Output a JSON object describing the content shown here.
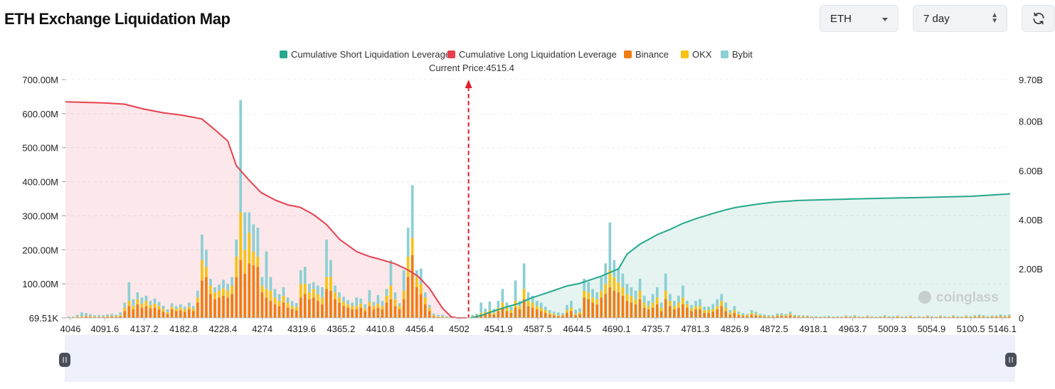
{
  "header": {
    "title": "ETH Exchange Liquidation Map",
    "coin_select": "ETH",
    "range_select": "7 day"
  },
  "colors": {
    "short": "#26a88c",
    "long": "#e8404f",
    "binance": "#f07c12",
    "okx": "#f7c214",
    "bybit": "#8ccfd4"
  },
  "watermark": "coinglass",
  "chart_data": {
    "type": "bar",
    "current_price_label": "Current Price:4515.4",
    "current_price": 4515.4,
    "legend": [
      {
        "name": "Cumulative Short Liquidation Leverage",
        "color": "#26a88c"
      },
      {
        "name": "Cumulative Long Liquidation Leverage",
        "color": "#e8404f"
      },
      {
        "name": "Binance",
        "color": "#f07c12"
      },
      {
        "name": "OKX",
        "color": "#f7c214"
      },
      {
        "name": "Bybit",
        "color": "#8ccfd4"
      }
    ],
    "x_ticks": [
      "4046",
      "4091.6",
      "4137.2",
      "4182.8",
      "4228.4",
      "4274",
      "4319.6",
      "4365.2",
      "4410.8",
      "4456.4",
      "4502",
      "4541.9",
      "4587.5",
      "4644.5",
      "4690.1",
      "4735.7",
      "4781.3",
      "4826.9",
      "4872.5",
      "4918.1",
      "4963.7",
      "5009.3",
      "5054.9",
      "5100.5",
      "5146.1"
    ],
    "y_left_ticks": [
      "69.51K",
      "100.00M",
      "200.00M",
      "300.00M",
      "400.00M",
      "500.00M",
      "600.00M",
      "700.00M"
    ],
    "y_right_ticks": [
      "0",
      "2.00B",
      "4.00B",
      "6.00B",
      "8.00B",
      "9.70B"
    ],
    "y_left_range": [
      0,
      700
    ],
    "y_right_range": [
      0,
      9.7
    ],
    "x_range": [
      4046,
      5146.1
    ],
    "long_cumulative_B": [
      [
        4046,
        8.8
      ],
      [
        4091.6,
        8.75
      ],
      [
        4115,
        8.7
      ],
      [
        4137.2,
        8.5
      ],
      [
        4160,
        8.35
      ],
      [
        4182.8,
        8.25
      ],
      [
        4205,
        8.1
      ],
      [
        4222,
        7.6
      ],
      [
        4235,
        7.2
      ],
      [
        4245,
        6.2
      ],
      [
        4260,
        5.6
      ],
      [
        4274,
        5.1
      ],
      [
        4290,
        4.8
      ],
      [
        4305,
        4.6
      ],
      [
        4319.6,
        4.5
      ],
      [
        4335,
        4.2
      ],
      [
        4350,
        3.8
      ],
      [
        4365.2,
        3.2
      ],
      [
        4385,
        2.7
      ],
      [
        4400,
        2.5
      ],
      [
        4410.8,
        2.4
      ],
      [
        4430,
        2.2
      ],
      [
        4445,
        1.95
      ],
      [
        4456.4,
        1.7
      ],
      [
        4470,
        1.2
      ],
      [
        4485,
        0.4
      ],
      [
        4495,
        0.05
      ],
      [
        4502,
        0.0
      ],
      [
        4513,
        0.0
      ]
    ],
    "short_cumulative_B": [
      [
        4518,
        0.0
      ],
      [
        4530,
        0.1
      ],
      [
        4541.9,
        0.25
      ],
      [
        4560,
        0.45
      ],
      [
        4575,
        0.6
      ],
      [
        4587.5,
        0.8
      ],
      [
        4605,
        1.0
      ],
      [
        4630,
        1.3
      ],
      [
        4644.5,
        1.4
      ],
      [
        4670,
        1.7
      ],
      [
        4690.1,
        2.0
      ],
      [
        4700,
        2.6
      ],
      [
        4715,
        3.0
      ],
      [
        4735.7,
        3.4
      ],
      [
        4750,
        3.6
      ],
      [
        4765,
        3.85
      ],
      [
        4781.3,
        4.05
      ],
      [
        4800,
        4.25
      ],
      [
        4815,
        4.4
      ],
      [
        4826.9,
        4.5
      ],
      [
        4850,
        4.62
      ],
      [
        4872.5,
        4.72
      ],
      [
        4900,
        4.78
      ],
      [
        4918.1,
        4.8
      ],
      [
        4963.7,
        4.84
      ],
      [
        5009.3,
        4.88
      ],
      [
        5054.9,
        4.91
      ],
      [
        5100.5,
        4.95
      ],
      [
        5146.1,
        5.05
      ]
    ],
    "bars_M": [
      [
        4050,
        1,
        1,
        2
      ],
      [
        4055,
        1,
        1,
        2
      ],
      [
        4060,
        2,
        2,
        5
      ],
      [
        4065,
        2,
        2,
        12
      ],
      [
        4070,
        4,
        2,
        8
      ],
      [
        4075,
        3,
        2,
        6
      ],
      [
        4080,
        2,
        2,
        4
      ],
      [
        4085,
        2,
        1,
        5
      ],
      [
        4090,
        2,
        2,
        4
      ],
      [
        4095,
        3,
        2,
        5
      ],
      [
        4100,
        4,
        2,
        6
      ],
      [
        4105,
        3,
        2,
        4
      ],
      [
        4110,
        5,
        3,
        8
      ],
      [
        4115,
        20,
        10,
        15
      ],
      [
        4120,
        35,
        15,
        55
      ],
      [
        4125,
        25,
        10,
        20
      ],
      [
        4130,
        40,
        15,
        20
      ],
      [
        4135,
        30,
        12,
        18
      ],
      [
        4140,
        35,
        15,
        15
      ],
      [
        4145,
        28,
        10,
        12
      ],
      [
        4150,
        30,
        12,
        15
      ],
      [
        4155,
        25,
        10,
        12
      ],
      [
        4160,
        18,
        8,
        10
      ],
      [
        4165,
        12,
        5,
        8
      ],
      [
        4170,
        25,
        8,
        10
      ],
      [
        4175,
        20,
        7,
        8
      ],
      [
        4180,
        22,
        8,
        10
      ],
      [
        4185,
        18,
        7,
        8
      ],
      [
        4190,
        25,
        8,
        12
      ],
      [
        4195,
        20,
        7,
        8
      ],
      [
        4200,
        45,
        15,
        20
      ],
      [
        4205,
        110,
        60,
        75
      ],
      [
        4210,
        120,
        30,
        50
      ],
      [
        4215,
        70,
        25,
        20
      ],
      [
        4220,
        55,
        20,
        15
      ],
      [
        4225,
        60,
        20,
        18
      ],
      [
        4230,
        65,
        22,
        25
      ],
      [
        4235,
        60,
        20,
        20
      ],
      [
        4240,
        70,
        25,
        25
      ],
      [
        4245,
        120,
        60,
        50
      ],
      [
        4250,
        170,
        140,
        330
      ],
      [
        4255,
        130,
        70,
        110
      ],
      [
        4260,
        160,
        90,
        60
      ],
      [
        4265,
        155,
        40,
        80
      ],
      [
        4270,
        150,
        30,
        85
      ],
      [
        4275,
        75,
        20,
        25
      ],
      [
        4280,
        60,
        25,
        110
      ],
      [
        4285,
        50,
        30,
        40
      ],
      [
        4290,
        40,
        20,
        25
      ],
      [
        4295,
        35,
        15,
        20
      ],
      [
        4300,
        45,
        20,
        25
      ],
      [
        4305,
        30,
        15,
        15
      ],
      [
        4310,
        25,
        10,
        15
      ],
      [
        4315,
        22,
        10,
        12
      ],
      [
        4320,
        60,
        40,
        40
      ],
      [
        4325,
        70,
        30,
        50
      ],
      [
        4330,
        55,
        20,
        25
      ],
      [
        4335,
        60,
        25,
        20
      ],
      [
        4340,
        50,
        20,
        25
      ],
      [
        4345,
        40,
        20,
        30
      ],
      [
        4350,
        85,
        35,
        110
      ],
      [
        4355,
        80,
        40,
        50
      ],
      [
        4360,
        55,
        20,
        20
      ],
      [
        4365,
        45,
        15,
        15
      ],
      [
        4370,
        35,
        12,
        15
      ],
      [
        4375,
        30,
        10,
        12
      ],
      [
        4380,
        25,
        10,
        10
      ],
      [
        4385,
        25,
        10,
        25
      ],
      [
        4390,
        30,
        12,
        15
      ],
      [
        4395,
        20,
        8,
        12
      ],
      [
        4400,
        35,
        12,
        35
      ],
      [
        4405,
        25,
        10,
        12
      ],
      [
        4410,
        30,
        12,
        25
      ],
      [
        4415,
        25,
        10,
        15
      ],
      [
        4420,
        45,
        20,
        20
      ],
      [
        4425,
        55,
        40,
        75
      ],
      [
        4430,
        35,
        20,
        20
      ],
      [
        4435,
        25,
        10,
        8
      ],
      [
        4440,
        55,
        25,
        60
      ],
      [
        4445,
        120,
        60,
        85
      ],
      [
        4450,
        185,
        50,
        155
      ],
      [
        4455,
        90,
        30,
        20
      ],
      [
        4460,
        70,
        30,
        45
      ],
      [
        4465,
        40,
        20,
        15
      ],
      [
        4470,
        20,
        10,
        8
      ],
      [
        4475,
        5,
        3,
        5
      ],
      [
        4480,
        2,
        2,
        5
      ],
      [
        4485,
        2,
        2,
        5
      ],
      [
        4490,
        1,
        1,
        3
      ],
      [
        4495,
        1,
        1,
        1
      ],
      [
        4500,
        1,
        1,
        1
      ],
      [
        4520,
        3,
        2,
        4
      ],
      [
        4525,
        5,
        3,
        5
      ],
      [
        4530,
        10,
        5,
        30
      ],
      [
        4535,
        12,
        5,
        10
      ],
      [
        4540,
        15,
        8,
        25
      ],
      [
        4545,
        10,
        5,
        12
      ],
      [
        4550,
        20,
        10,
        20
      ],
      [
        4555,
        30,
        15,
        40
      ],
      [
        4560,
        20,
        10,
        15
      ],
      [
        4565,
        15,
        8,
        10
      ],
      [
        4570,
        30,
        20,
        60
      ],
      [
        4575,
        25,
        10,
        15
      ],
      [
        4580,
        55,
        30,
        75
      ],
      [
        4585,
        35,
        15,
        25
      ],
      [
        4590,
        30,
        15,
        20
      ],
      [
        4595,
        25,
        10,
        15
      ],
      [
        4600,
        20,
        10,
        15
      ],
      [
        4605,
        15,
        8,
        10
      ],
      [
        4610,
        10,
        5,
        8
      ],
      [
        4615,
        8,
        4,
        6
      ],
      [
        4620,
        5,
        3,
        8
      ],
      [
        4625,
        6,
        3,
        5
      ],
      [
        4630,
        15,
        8,
        15
      ],
      [
        4635,
        20,
        10,
        20
      ],
      [
        4640,
        8,
        4,
        12
      ],
      [
        4645,
        12,
        6,
        10
      ],
      [
        4650,
        60,
        20,
        35
      ],
      [
        4655,
        55,
        20,
        30
      ],
      [
        4660,
        45,
        15,
        25
      ],
      [
        4665,
        40,
        15,
        20
      ],
      [
        4670,
        60,
        20,
        40
      ],
      [
        4675,
        70,
        30,
        60
      ],
      [
        4680,
        90,
        50,
        140
      ],
      [
        4685,
        80,
        40,
        50
      ],
      [
        4690,
        75,
        30,
        40
      ],
      [
        4695,
        65,
        25,
        40
      ],
      [
        4700,
        50,
        20,
        30
      ],
      [
        4705,
        45,
        20,
        25
      ],
      [
        4710,
        40,
        15,
        25
      ],
      [
        4715,
        55,
        25,
        35
      ],
      [
        4720,
        30,
        15,
        20
      ],
      [
        4725,
        25,
        10,
        15
      ],
      [
        4730,
        30,
        15,
        25
      ],
      [
        4735,
        40,
        20,
        30
      ],
      [
        4740,
        20,
        10,
        15
      ],
      [
        4745,
        55,
        25,
        50
      ],
      [
        4750,
        35,
        15,
        20
      ],
      [
        4755,
        25,
        10,
        15
      ],
      [
        4760,
        30,
        15,
        20
      ],
      [
        4765,
        40,
        20,
        35
      ],
      [
        4770,
        30,
        10,
        10
      ],
      [
        4775,
        20,
        8,
        10
      ],
      [
        4780,
        25,
        10,
        15
      ],
      [
        4785,
        25,
        10,
        20
      ],
      [
        4790,
        15,
        8,
        10
      ],
      [
        4795,
        15,
        8,
        10
      ],
      [
        4800,
        18,
        8,
        15
      ],
      [
        4805,
        25,
        10,
        20
      ],
      [
        4810,
        35,
        15,
        20
      ],
      [
        4815,
        20,
        10,
        15
      ],
      [
        4820,
        10,
        5,
        8
      ],
      [
        4825,
        15,
        8,
        12
      ],
      [
        4830,
        8,
        4,
        6
      ],
      [
        4835,
        6,
        3,
        5
      ],
      [
        4840,
        5,
        3,
        4
      ],
      [
        4845,
        10,
        5,
        8
      ],
      [
        4850,
        8,
        4,
        6
      ],
      [
        4855,
        5,
        3,
        4
      ],
      [
        4860,
        4,
        2,
        4
      ],
      [
        4865,
        3,
        2,
        3
      ],
      [
        4870,
        3,
        2,
        3
      ],
      [
        4875,
        5,
        3,
        5
      ],
      [
        4880,
        6,
        3,
        5
      ],
      [
        4885,
        5,
        3,
        4
      ],
      [
        4890,
        8,
        4,
        6
      ],
      [
        4895,
        4,
        2,
        3
      ],
      [
        4900,
        3,
        2,
        3
      ],
      [
        4905,
        3,
        2,
        2
      ],
      [
        4910,
        3,
        2,
        2
      ],
      [
        4915,
        2,
        1,
        2
      ],
      [
        4920,
        2,
        1,
        2
      ],
      [
        4925,
        2,
        1,
        1
      ],
      [
        4930,
        2,
        1,
        2
      ],
      [
        4935,
        3,
        1,
        2
      ],
      [
        4940,
        2,
        1,
        1
      ],
      [
        4945,
        2,
        1,
        2
      ],
      [
        4950,
        2,
        1,
        1
      ],
      [
        4955,
        3,
        2,
        2
      ],
      [
        4960,
        2,
        1,
        2
      ],
      [
        4965,
        3,
        2,
        3
      ],
      [
        4970,
        2,
        1,
        2
      ],
      [
        4975,
        2,
        1,
        1
      ],
      [
        4980,
        3,
        2,
        2
      ],
      [
        4985,
        2,
        1,
        2
      ],
      [
        4990,
        2,
        1,
        1
      ],
      [
        4995,
        2,
        1,
        2
      ],
      [
        5000,
        3,
        2,
        3
      ],
      [
        5005,
        2,
        1,
        2
      ],
      [
        5010,
        2,
        1,
        2
      ],
      [
        5015,
        3,
        2,
        2
      ],
      [
        5020,
        2,
        1,
        1
      ],
      [
        5025,
        2,
        1,
        2
      ],
      [
        5030,
        3,
        2,
        2
      ],
      [
        5035,
        2,
        1,
        1
      ],
      [
        5040,
        2,
        1,
        2
      ],
      [
        5045,
        2,
        1,
        1
      ],
      [
        5050,
        3,
        2,
        2
      ],
      [
        5055,
        2,
        1,
        2
      ],
      [
        5060,
        2,
        1,
        1
      ],
      [
        5065,
        3,
        2,
        2
      ],
      [
        5070,
        2,
        1,
        2
      ],
      [
        5075,
        2,
        1,
        1
      ],
      [
        5080,
        3,
        2,
        3
      ],
      [
        5085,
        2,
        1,
        2
      ],
      [
        5090,
        2,
        1,
        1
      ],
      [
        5095,
        3,
        2,
        2
      ],
      [
        5100,
        2,
        1,
        2
      ],
      [
        5105,
        3,
        2,
        3
      ],
      [
        5110,
        4,
        2,
        4
      ],
      [
        5115,
        3,
        2,
        3
      ],
      [
        5120,
        2,
        1,
        2
      ],
      [
        5125,
        3,
        2,
        2
      ],
      [
        5130,
        3,
        2,
        2
      ],
      [
        5135,
        4,
        2,
        4
      ],
      [
        5140,
        3,
        2,
        3
      ],
      [
        5145,
        4,
        2,
        4
      ]
    ]
  }
}
